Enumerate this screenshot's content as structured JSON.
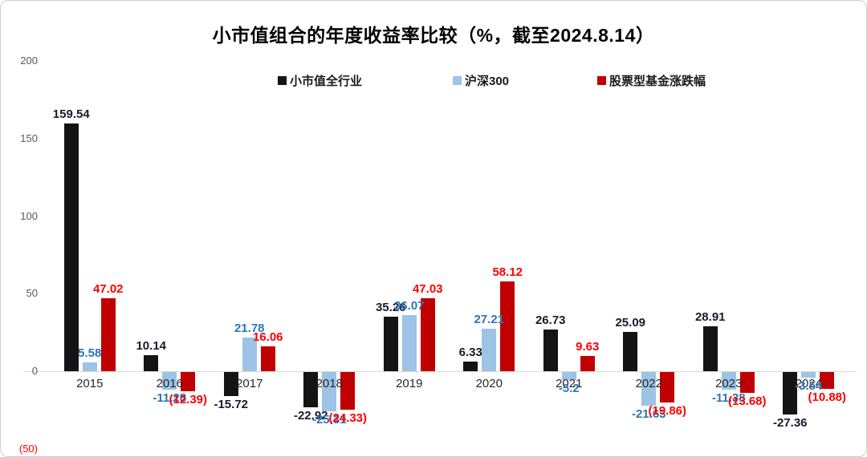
{
  "title": "小市值组合的年度收益率比较（%，截至2024.8.14）",
  "legend": [
    {
      "name": "small-cap-all-industry",
      "label": "小市值全行业",
      "color": "#141414"
    },
    {
      "name": "csi-300",
      "label": "沪深300",
      "color": "#9dc3e6"
    },
    {
      "name": "equity-fund-change",
      "label": "股票型基金涨跌幅",
      "color": "#c00000"
    }
  ],
  "y_axis": {
    "ticks": [
      {
        "label": "200",
        "value": 200,
        "color": "#595959"
      },
      {
        "label": "150",
        "value": 150,
        "color": "#595959"
      },
      {
        "label": "100",
        "value": 100,
        "color": "#595959"
      },
      {
        "label": "50",
        "value": 50,
        "color": "#595959"
      },
      {
        "label": "0",
        "value": 0,
        "color": "#595959"
      },
      {
        "label": "(50)",
        "value": -50,
        "color": "#ff0000"
      }
    ]
  },
  "chart_data": {
    "type": "bar",
    "title": "小市值组合的年度收益率比较（%，截至2024.8.14）",
    "xlabel": "",
    "ylabel": "",
    "ylim": [
      -50,
      200
    ],
    "grid": false,
    "legend_position": "top",
    "categories": [
      "2015",
      "2016",
      "2017",
      "2018",
      "2019",
      "2020",
      "2021",
      "2022",
      "2023",
      "2024"
    ],
    "series": [
      {
        "name": "小市值全行业",
        "color": "#141414",
        "label_color": "#1a1a2e",
        "values": [
          159.54,
          10.14,
          -15.72,
          -22.92,
          35.26,
          6.33,
          26.73,
          25.09,
          28.91,
          -27.36
        ],
        "labels": [
          "159.54",
          "10.14",
          "-15.72",
          "-22.92",
          "35.26",
          "6.33",
          "26.73",
          "25.09",
          "28.91",
          "-27.36"
        ]
      },
      {
        "name": "沪深300",
        "color": "#9dc3e6",
        "label_color": "#2e74b5",
        "values": [
          5.58,
          -11.28,
          21.78,
          -25.31,
          36.07,
          27.21,
          -5.2,
          -21.63,
          -11.38,
          -3.54
        ],
        "labels": [
          "5.58",
          "-11.28",
          "21.78",
          "-25.31",
          "36.07",
          "27.21",
          "-5.2",
          "-21.63",
          "-11.38",
          "-3.54"
        ]
      },
      {
        "name": "股票型基金涨跌幅",
        "color": "#c00000",
        "label_color": "#ff0000",
        "values": [
          47.02,
          -12.39,
          16.06,
          -24.33,
          47.03,
          58.12,
          9.63,
          -19.86,
          -13.68,
          -10.88
        ],
        "labels": [
          "47.02",
          "(12.39)",
          "16.06",
          "(24.33)",
          "47.03",
          "58.12",
          "9.63",
          "(19.86)",
          "(13.68)",
          "(10.88)"
        ]
      }
    ]
  }
}
